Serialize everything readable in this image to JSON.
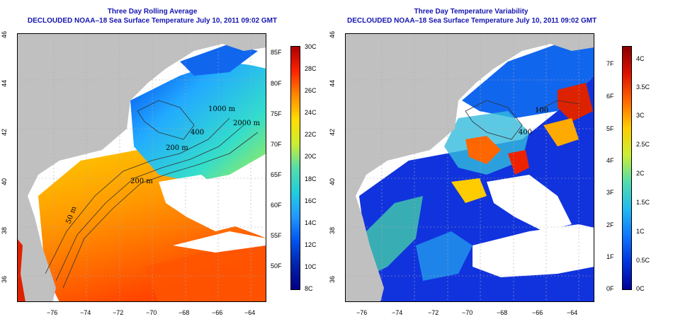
{
  "left_panel": {
    "title_line1": "Three Day Rolling Average",
    "title_line2": "DECLOUDED NOAA–18 Sea Surface Temperature July 10, 2011 09:02 GMT",
    "colorbar_left_labels": [
      "85F",
      "80F",
      "75F",
      "70F",
      "65F",
      "60F",
      "55F",
      "50F"
    ],
    "colorbar_right_labels": [
      "30C",
      "28C",
      "26C",
      "24C",
      "22C",
      "20C",
      "18C",
      "16C",
      "14C",
      "12C",
      "10C",
      "8C"
    ],
    "contour_labels": [
      "1000 m",
      "2000 m",
      "200 m",
      "200 m",
      "50 m",
      "400"
    ]
  },
  "right_panel": {
    "title_line1": "Three Day Temperature Variability",
    "title_line2": "DECLOUDED NOAA–18 Sea Surface Temperature July 10, 2011 09:02 GMT",
    "colorbar_left_labels": [
      "7F",
      "6F",
      "5F",
      "4F",
      "3F",
      "2F",
      "1F",
      "0F"
    ],
    "colorbar_right_labels": [
      "4C",
      "3.5C",
      "3C",
      "2.5C",
      "2C",
      "1.5C",
      "1C",
      "0.5C",
      "0C"
    ],
    "contour_labels": [
      "100",
      "400"
    ]
  },
  "axes": {
    "x_ticks": [
      "−76",
      "−74",
      "−72",
      "−70",
      "−68",
      "−66",
      "−64"
    ],
    "y_ticks": [
      "36",
      "38",
      "40",
      "42",
      "44",
      "46"
    ]
  },
  "colors": {
    "land": "#c0c0c0",
    "title": "#1515b0",
    "sst_scale": [
      "#ff0000",
      "#ff7700",
      "#ffcc00",
      "#ccee33",
      "#66e0a0",
      "#22cccc",
      "#2299ff",
      "#0044ee",
      "#000088"
    ],
    "var_scale": [
      "#cc0000",
      "#ff6600",
      "#ffdd00",
      "#aaee44",
      "#33ddcc",
      "#22aaff",
      "#1144ff",
      "#0000aa"
    ]
  }
}
